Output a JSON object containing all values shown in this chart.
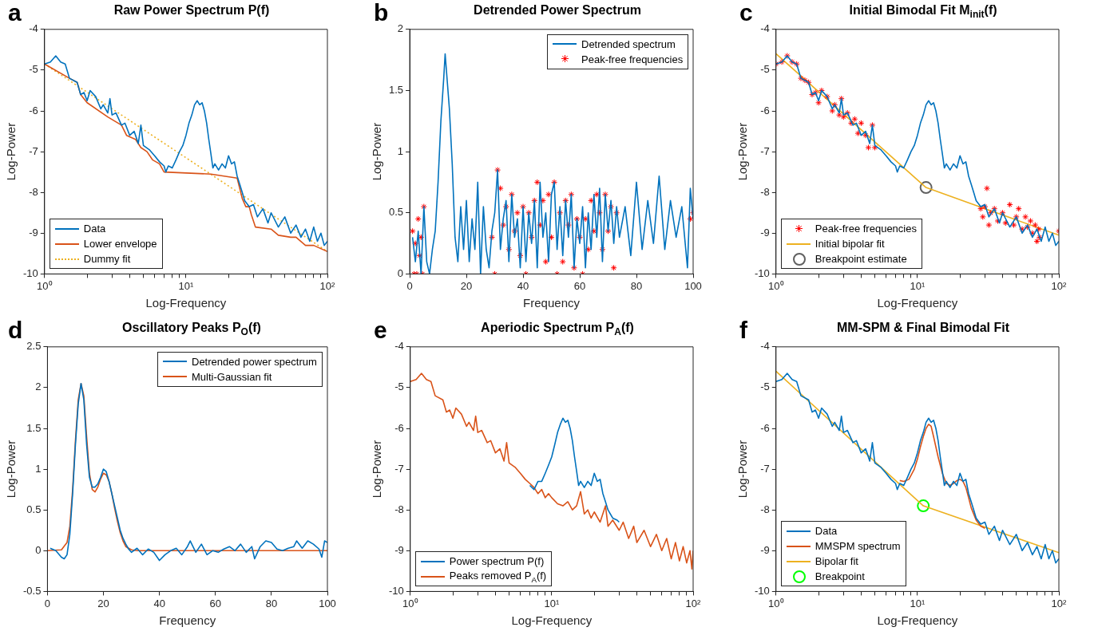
{
  "chart_data": [
    {
      "type": "line",
      "title": "Raw Power Spectrum P(f)",
      "annotations": [
        "a"
      ],
      "xlabel": "Log-Frequency",
      "ylabel": "Log-Power",
      "log": "x",
      "legend": "bottom left",
      "xlim": [
        1,
        100
      ],
      "xticks": [
        {
          "value": 1,
          "label": "10⁰"
        },
        {
          "value": 2,
          "label": null
        },
        {
          "value": 3,
          "label": null
        },
        {
          "value": 4,
          "label": null
        },
        {
          "value": 5,
          "label": null
        },
        {
          "value": 6,
          "label": null
        },
        {
          "value": 7,
          "label": null
        },
        {
          "value": 8,
          "label": null
        },
        {
          "value": 9,
          "label": null
        },
        {
          "value": 10,
          "label": "10¹"
        },
        {
          "value": 20,
          "label": null
        },
        {
          "value": 30,
          "label": null
        },
        {
          "value": 40,
          "label": null
        },
        {
          "value": 50,
          "label": null
        },
        {
          "value": 60,
          "label": null
        },
        {
          "value": 70,
          "label": null
        },
        {
          "value": 80,
          "label": null
        },
        {
          "value": 90,
          "label": null
        },
        {
          "value": 100,
          "label": "10²"
        }
      ],
      "ylim": [
        -10,
        -4
      ],
      "yticks": [
        -10,
        -9,
        -8,
        -7,
        -6,
        -5,
        -4
      ],
      "series": [
        {
          "name": "Data",
          "type": "line",
          "color": "#0072bd",
          "marker": "none",
          "line_style": "solid",
          "x": [
            1,
            1.1,
            1.2,
            1.3,
            1.4,
            1.5,
            1.7,
            1.8,
            1.9,
            2,
            2.1,
            2.3,
            2.5,
            2.6,
            2.8,
            2.9,
            3,
            3.2,
            3.5,
            3.7,
            4,
            4.3,
            4.6,
            4.8,
            5,
            5.5,
            6,
            6.5,
            7,
            7.2,
            7.5,
            8,
            8.5,
            9,
            9.5,
            10,
            10.5,
            11,
            11.5,
            12,
            12.5,
            13,
            13.5,
            14,
            14.5,
            15,
            15.5,
            16,
            17,
            18,
            19,
            20,
            21,
            22,
            23,
            24,
            25,
            26,
            28,
            30,
            32,
            35,
            38,
            40,
            45,
            50,
            55,
            60,
            65,
            70,
            75,
            80,
            85,
            90,
            95,
            100
          ],
          "values": [
            -4.85,
            -4.8,
            -4.65,
            -4.8,
            -4.85,
            -5.2,
            -5.3,
            -5.6,
            -5.55,
            -5.75,
            -5.5,
            -5.65,
            -5.95,
            -5.85,
            -6.05,
            -5.7,
            -6.1,
            -6.05,
            -6.35,
            -6.3,
            -6.6,
            -6.5,
            -6.8,
            -6.35,
            -6.85,
            -6.95,
            -7.1,
            -7.25,
            -7.35,
            -7.5,
            -7.35,
            -7.4,
            -7.2,
            -7,
            -6.85,
            -6.6,
            -6.3,
            -6.1,
            -5.85,
            -5.75,
            -5.85,
            -5.8,
            -6,
            -6.3,
            -6.7,
            -7.05,
            -7.4,
            -7.3,
            -7.45,
            -7.3,
            -7.4,
            -7.1,
            -7.3,
            -7.25,
            -7.6,
            -7.8,
            -8,
            -8.2,
            -8.35,
            -8.3,
            -8.6,
            -8.4,
            -8.75,
            -8.5,
            -8.85,
            -8.6,
            -9,
            -8.8,
            -9.1,
            -8.9,
            -9.2,
            -8.85,
            -9.2,
            -9,
            -9.3,
            -9.2
          ]
        },
        {
          "name": "Lower envelope",
          "type": "line",
          "color": "#d95319",
          "marker": "none",
          "line_style": "solid",
          "x": [
            1,
            1.5,
            1.7,
            1.8,
            2,
            2.8,
            3.5,
            3.8,
            4.4,
            4.8,
            5.3,
            5.8,
            6.5,
            7,
            15,
            23,
            25,
            26.5,
            28,
            29,
            31,
            40,
            45,
            55,
            60,
            70,
            80,
            100
          ],
          "values": [
            -4.85,
            -5.2,
            -5.3,
            -5.6,
            -5.8,
            -6.15,
            -6.35,
            -6.6,
            -6.7,
            -6.9,
            -7,
            -7.2,
            -7.3,
            -7.5,
            -7.55,
            -7.65,
            -8.15,
            -8.35,
            -8.35,
            -8.55,
            -8.85,
            -8.9,
            -9.05,
            -9.1,
            -9.1,
            -9.3,
            -9.3,
            -9.45
          ]
        },
        {
          "name": "Dummy fit",
          "type": "line",
          "color": "#edb120",
          "marker": "none",
          "line_style": "dotted",
          "x": [
            1,
            100
          ],
          "values": [
            -4.85,
            -9.45
          ]
        }
      ]
    },
    {
      "type": "line",
      "title": "Detrended Power Spectrum",
      "annotations": [
        "b"
      ],
      "xlabel": "Frequency",
      "ylabel": "Log-Power",
      "legend": "top right",
      "xlim": [
        0,
        100
      ],
      "xticks": [
        0,
        20,
        40,
        60,
        80,
        100
      ],
      "ylim": [
        0,
        2
      ],
      "yticks": [
        0,
        0.5,
        1,
        1.5,
        2
      ],
      "series": [
        {
          "name": "Detrended spectrum",
          "type": "line",
          "color": "#0072bd",
          "marker": "none",
          "line_style": "solid",
          "x": [
            1,
            2,
            3,
            4,
            5,
            6,
            7,
            8,
            9,
            10,
            11,
            12,
            12.5,
            13,
            14,
            15,
            16,
            17,
            18,
            19,
            20,
            21,
            22,
            23,
            24,
            25,
            26,
            27,
            28,
            29,
            30,
            31,
            32,
            33,
            34,
            35,
            36,
            37,
            38,
            39,
            40,
            41,
            42,
            43,
            44,
            45,
            46,
            47,
            48,
            49,
            50,
            51,
            52,
            53,
            54,
            55,
            56,
            57,
            58,
            59,
            60,
            61,
            62,
            63,
            64,
            65,
            66,
            67,
            68,
            69,
            70,
            71,
            72,
            73,
            74,
            76,
            78,
            80,
            82,
            84,
            86,
            88,
            90,
            92,
            94,
            96,
            98,
            99,
            100
          ],
          "values": [
            0.3,
            0.1,
            0.35,
            0,
            0.55,
            0.1,
            0,
            0.2,
            0.35,
            0.75,
            1.25,
            1.6,
            1.8,
            1.65,
            1.35,
            0.9,
            0.3,
            0.1,
            0.55,
            0.2,
            0.6,
            0.1,
            0.45,
            0.2,
            0.75,
            0,
            0.55,
            0.2,
            0.05,
            0.35,
            0.5,
            0.85,
            0.2,
            0.45,
            0.6,
            0.1,
            0.65,
            0.3,
            0.45,
            0.05,
            0.55,
            0.1,
            0.5,
            0.25,
            0.6,
            0.05,
            0.75,
            0.3,
            0.5,
            0.1,
            0.65,
            0.75,
            0.2,
            0.55,
            0.15,
            0.6,
            0.3,
            0.65,
            0.05,
            0.45,
            0.25,
            0.55,
            0.05,
            0.5,
            0.2,
            0.65,
            0.3,
            0.7,
            0.1,
            0.65,
            0.35,
            0.6,
            0.25,
            0.55,
            0.3,
            0.55,
            0.15,
            0.75,
            0.2,
            0.6,
            0.25,
            0.8,
            0.2,
            0.6,
            0.3,
            0.55,
            0.05,
            0.7,
            0.45
          ]
        },
        {
          "name": "Peak-free frequencies",
          "type": "scatter",
          "color": "#ff0000",
          "marker": "cross",
          "x": [
            1,
            1.5,
            2,
            2.5,
            3,
            3.5,
            4,
            4.5,
            5,
            29,
            30,
            31,
            32,
            33,
            34,
            35,
            36,
            37,
            38,
            39,
            40,
            41,
            42,
            43,
            44,
            45,
            46,
            47,
            48,
            49,
            50,
            51,
            52,
            53,
            54,
            55,
            56,
            57,
            58,
            59,
            60,
            61,
            62,
            63,
            64,
            65,
            66,
            67,
            68,
            69,
            70,
            71,
            72,
            73,
            99,
            100
          ],
          "values": [
            0.35,
            0,
            0.25,
            0,
            0.45,
            0.15,
            0.3,
            0,
            0.55,
            0.3,
            0,
            0.85,
            0.7,
            0.4,
            0.55,
            0.2,
            0.65,
            0.35,
            0.5,
            0.15,
            0.55,
            0,
            0.5,
            0.3,
            0.6,
            0.75,
            0.4,
            0.6,
            0.1,
            0.65,
            0.3,
            0.75,
            0,
            0.5,
            0.1,
            0.6,
            0.4,
            0.65,
            0.05,
            0.45,
            0.3,
            0,
            0.45,
            0.2,
            0.6,
            0.35,
            0.65,
            0.5,
            0.2,
            0.65,
            0.35,
            0.55,
            0.05,
            0.5,
            0.45,
            0.5
          ]
        }
      ]
    },
    {
      "type": "line",
      "title": "Initial Bimodal Fit M$_{init}$(f)",
      "annotations": [
        "c"
      ],
      "xlabel": "Log-Frequency",
      "ylabel": "Log-Power",
      "log": "x",
      "legend": "bottom left",
      "xlim": [
        1,
        100
      ],
      "xticks": [
        {
          "value": 1,
          "label": "10⁰"
        },
        {
          "value": 2,
          "label": null
        },
        {
          "value": 3,
          "label": null
        },
        {
          "value": 4,
          "label": null
        },
        {
          "value": 5,
          "label": null
        },
        {
          "value": 6,
          "label": null
        },
        {
          "value": 7,
          "label": null
        },
        {
          "value": 8,
          "label": null
        },
        {
          "value": 9,
          "label": null
        },
        {
          "value": 10,
          "label": "10¹"
        },
        {
          "value": 20,
          "label": null
        },
        {
          "value": 30,
          "label": null
        },
        {
          "value": 40,
          "label": null
        },
        {
          "value": 50,
          "label": null
        },
        {
          "value": 60,
          "label": null
        },
        {
          "value": 70,
          "label": null
        },
        {
          "value": 80,
          "label": null
        },
        {
          "value": 90,
          "label": null
        },
        {
          "value": 100,
          "label": "10²"
        }
      ],
      "ylim": [
        -10,
        -4
      ],
      "yticks": [
        -10,
        -9,
        -8,
        -7,
        -6,
        -5,
        -4
      ],
      "series": [
        {
          "type": "line",
          "color": "#0072bd",
          "marker": "none",
          "line_style": "solid",
          "x": [
            1,
            1.1,
            1.2,
            1.3,
            1.4,
            1.5,
            1.7,
            1.8,
            1.9,
            2,
            2.1,
            2.3,
            2.5,
            2.6,
            2.8,
            2.9,
            3,
            3.2,
            3.5,
            3.7,
            4,
            4.3,
            4.6,
            4.8,
            5,
            5.5,
            6,
            6.5,
            7,
            7.2,
            7.5,
            8,
            8.5,
            9,
            9.5,
            10,
            10.5,
            11,
            11.5,
            12,
            12.5,
            13,
            13.5,
            14,
            14.5,
            15,
            15.5,
            16,
            17,
            18,
            19,
            20,
            21,
            22,
            23,
            24,
            25,
            26,
            28,
            30,
            32,
            35,
            38,
            40,
            45,
            50,
            55,
            60,
            65,
            70,
            75,
            80,
            85,
            90,
            95,
            100
          ],
          "values": [
            -4.85,
            -4.8,
            -4.65,
            -4.8,
            -4.85,
            -5.2,
            -5.3,
            -5.6,
            -5.55,
            -5.75,
            -5.5,
            -5.65,
            -5.95,
            -5.85,
            -6.05,
            -5.7,
            -6.1,
            -6.05,
            -6.35,
            -6.3,
            -6.6,
            -6.5,
            -6.8,
            -6.35,
            -6.85,
            -6.95,
            -7.1,
            -7.25,
            -7.35,
            -7.5,
            -7.35,
            -7.4,
            -7.2,
            -7,
            -6.85,
            -6.6,
            -6.3,
            -6.1,
            -5.85,
            -5.75,
            -5.85,
            -5.8,
            -6,
            -6.3,
            -6.7,
            -7.05,
            -7.4,
            -7.3,
            -7.45,
            -7.3,
            -7.4,
            -7.1,
            -7.3,
            -7.25,
            -7.6,
            -7.8,
            -8,
            -8.2,
            -8.35,
            -8.3,
            -8.6,
            -8.4,
            -8.75,
            -8.5,
            -8.85,
            -8.6,
            -9,
            -8.8,
            -9.1,
            -8.9,
            -9.2,
            -8.85,
            -9.2,
            -9,
            -9.3,
            -9.2
          ]
        },
        {
          "name": "Peak-free frequencies",
          "type": "scatter",
          "color": "#ff0000",
          "marker": "cross",
          "x": [
            1,
            1.1,
            1.2,
            1.3,
            1.4,
            1.5,
            1.6,
            1.7,
            1.8,
            1.9,
            2,
            2.1,
            2.3,
            2.5,
            2.6,
            2.8,
            2.9,
            3,
            3.2,
            3.4,
            3.6,
            3.8,
            4,
            4.3,
            4.5,
            4.8,
            5,
            28,
            29,
            30,
            31,
            32,
            33,
            35,
            37,
            40,
            42,
            45,
            48,
            50,
            52,
            55,
            58,
            60,
            63,
            65,
            68,
            70,
            72,
            73,
            100
          ],
          "values": [
            -4.85,
            -4.8,
            -4.65,
            -4.8,
            -4.85,
            -5.2,
            -5.25,
            -5.3,
            -5.6,
            -5.55,
            -5.8,
            -5.5,
            -5.65,
            -6,
            -5.85,
            -6.1,
            -5.7,
            -6.15,
            -6.05,
            -6.3,
            -6.2,
            -6.55,
            -6.3,
            -6.6,
            -6.9,
            -6.35,
            -6.9,
            -8.4,
            -8.6,
            -8.35,
            -7.9,
            -8.8,
            -8.5,
            -8.4,
            -8.7,
            -8.5,
            -8.75,
            -8.3,
            -8.8,
            -8.6,
            -8.4,
            -8.9,
            -8.6,
            -8.85,
            -8.7,
            -9,
            -8.8,
            -9.2,
            -8.9,
            -9.1,
            -8.95
          ]
        },
        {
          "name": "Initial bipolar fit",
          "type": "line",
          "color": "#edb120",
          "marker": "none",
          "line_style": "solid",
          "x": [
            1,
            11.5,
            100
          ],
          "values": [
            -4.6,
            -7.88,
            -9.05
          ]
        },
        {
          "name": "Breakpoint estimate",
          "type": "scatter",
          "color": "#606060",
          "marker": "circle",
          "x": [
            11.5
          ],
          "values": [
            -7.88
          ]
        }
      ]
    },
    {
      "type": "line",
      "title": "Oscillatory Peaks P$_{O}$(f)",
      "annotations": [
        "d"
      ],
      "xlabel": "Frequency",
      "ylabel": "Log-Power",
      "legend": "top right",
      "xlim": [
        0,
        100
      ],
      "xticks": [
        0,
        20,
        40,
        60,
        80,
        100
      ],
      "ylim": [
        -0.5,
        2.5
      ],
      "yticks": [
        -0.5,
        0,
        0.5,
        1,
        1.5,
        2,
        2.5
      ],
      "series": [
        {
          "name": "Detrended power spectrum",
          "type": "line",
          "color": "#0072bd",
          "marker": "none",
          "line_style": "solid",
          "x": [
            1,
            3,
            5,
            6,
            7,
            8,
            9,
            10,
            11,
            12,
            13,
            14,
            15,
            16,
            17,
            18,
            19,
            20,
            21,
            22,
            23,
            24,
            25,
            26,
            27,
            28,
            29,
            30,
            32,
            34,
            36,
            38,
            40,
            42,
            44,
            46,
            48,
            50,
            51,
            53,
            55,
            57,
            59,
            61,
            63,
            65,
            67,
            69,
            71,
            73,
            74,
            76,
            78,
            80,
            82,
            84,
            86,
            88,
            89,
            91,
            93,
            95,
            97,
            98,
            99,
            100
          ],
          "values": [
            0.03,
            0,
            -0.08,
            -0.1,
            -0.05,
            0.2,
            0.7,
            1.3,
            1.8,
            2.05,
            1.85,
            1.3,
            0.9,
            0.78,
            0.78,
            0.82,
            0.9,
            1,
            0.97,
            0.85,
            0.7,
            0.55,
            0.4,
            0.25,
            0.15,
            0.08,
            0.02,
            -0.02,
            0.03,
            -0.05,
            0.02,
            -0.02,
            -0.12,
            -0.05,
            0,
            0.03,
            -0.05,
            0.05,
            0.12,
            -0.02,
            0.08,
            -0.05,
            0,
            -0.02,
            0.02,
            0.05,
            0,
            0.08,
            -0.02,
            0.05,
            -0.1,
            0.05,
            0.12,
            0.1,
            0.02,
            0,
            0.03,
            0.05,
            0.12,
            0.03,
            0.12,
            0.08,
            0.02,
            -0.08,
            0.12,
            0.1
          ]
        },
        {
          "name": "Multi-Gaussian fit",
          "type": "line",
          "color": "#d95319",
          "marker": "none",
          "line_style": "solid",
          "x": [
            0,
            5,
            7,
            8,
            9,
            10,
            11,
            12,
            13,
            14,
            15,
            16,
            17,
            18,
            19,
            20,
            21,
            22,
            23,
            24,
            25,
            26,
            27,
            28,
            30,
            32,
            100
          ],
          "values": [
            0,
            0.01,
            0.1,
            0.3,
            0.75,
            1.35,
            1.85,
            2.05,
            1.9,
            1.4,
            0.95,
            0.75,
            0.72,
            0.78,
            0.88,
            0.95,
            0.93,
            0.85,
            0.7,
            0.52,
            0.36,
            0.22,
            0.12,
            0.05,
            0.01,
            0,
            0
          ]
        }
      ]
    },
    {
      "type": "line",
      "title": "Aperiodic Spectrum P$_{A}$(f)",
      "annotations": [
        "e"
      ],
      "xlabel": "Log-Frequency",
      "ylabel": "Log-Power",
      "log": "x",
      "legend": "bottom left",
      "xlim": [
        1,
        100
      ],
      "xticks": [
        {
          "value": 1,
          "label": "10⁰"
        },
        {
          "value": 2,
          "label": null
        },
        {
          "value": 3,
          "label": null
        },
        {
          "value": 4,
          "label": null
        },
        {
          "value": 5,
          "label": null
        },
        {
          "value": 6,
          "label": null
        },
        {
          "value": 7,
          "label": null
        },
        {
          "value": 8,
          "label": null
        },
        {
          "value": 9,
          "label": null
        },
        {
          "value": 10,
          "label": "10¹"
        },
        {
          "value": 20,
          "label": null
        },
        {
          "value": 30,
          "label": null
        },
        {
          "value": 40,
          "label": null
        },
        {
          "value": 50,
          "label": null
        },
        {
          "value": 60,
          "label": null
        },
        {
          "value": 70,
          "label": null
        },
        {
          "value": 80,
          "label": null
        },
        {
          "value": 90,
          "label": null
        },
        {
          "value": 100,
          "label": "10²"
        }
      ],
      "ylim": [
        -10,
        -4
      ],
      "yticks": [
        -10,
        -9,
        -8,
        -7,
        -6,
        -5,
        -4
      ],
      "series": [
        {
          "name": "Power spectrum P(f)",
          "type": "line",
          "color": "#0072bd",
          "marker": "none",
          "line_style": "solid",
          "x": [
            7,
            7.5,
            8,
            8.5,
            9,
            9.5,
            10,
            10.5,
            11,
            11.5,
            12,
            12.5,
            13,
            13.5,
            14,
            14.5,
            15,
            15.5,
            16,
            17,
            18,
            19,
            20,
            21,
            22,
            23,
            24,
            25,
            27,
            29,
            30
          ],
          "values": [
            -7.4,
            -7.5,
            -7.3,
            -7.3,
            -7.1,
            -6.9,
            -6.7,
            -6.4,
            -6.1,
            -5.9,
            -5.75,
            -5.85,
            -5.8,
            -6,
            -6.3,
            -6.7,
            -7.05,
            -7.4,
            -7.3,
            -7.45,
            -7.3,
            -7.4,
            -7.1,
            -7.3,
            -7.25,
            -7.6,
            -7.8,
            -8,
            -8.2,
            -8.25,
            -8.3
          ]
        },
        {
          "name": "Peaks removed P$_{A}$(f)",
          "type": "line",
          "color": "#d95319",
          "marker": "none",
          "line_style": "solid",
          "x": [
            1,
            1.1,
            1.2,
            1.3,
            1.4,
            1.5,
            1.7,
            1.8,
            1.9,
            2,
            2.1,
            2.3,
            2.5,
            2.6,
            2.8,
            2.9,
            3,
            3.2,
            3.5,
            3.7,
            4,
            4.3,
            4.6,
            4.8,
            5,
            5.5,
            6,
            6.5,
            7,
            7.5,
            8,
            8.5,
            9,
            9.5,
            10,
            11,
            12,
            13,
            14,
            15,
            16,
            17,
            18,
            19,
            20,
            22,
            24,
            25,
            27,
            30,
            32,
            35,
            38,
            40,
            45,
            50,
            55,
            60,
            65,
            70,
            75,
            80,
            85,
            90,
            95,
            98,
            100
          ],
          "values": [
            -4.85,
            -4.8,
            -4.65,
            -4.8,
            -4.85,
            -5.2,
            -5.3,
            -5.6,
            -5.55,
            -5.75,
            -5.5,
            -5.65,
            -5.95,
            -5.85,
            -6.05,
            -5.7,
            -6.1,
            -6.05,
            -6.35,
            -6.3,
            -6.6,
            -6.5,
            -6.8,
            -6.35,
            -6.85,
            -6.95,
            -7.1,
            -7.25,
            -7.35,
            -7.45,
            -7.6,
            -7.5,
            -7.7,
            -7.6,
            -7.7,
            -7.85,
            -7.9,
            -7.8,
            -8,
            -7.9,
            -7.55,
            -8.1,
            -8,
            -8.2,
            -8.05,
            -8.3,
            -7.9,
            -8.4,
            -8.25,
            -8.5,
            -8.3,
            -8.7,
            -8.4,
            -8.8,
            -8.5,
            -8.9,
            -8.6,
            -9,
            -8.7,
            -9.2,
            -8.8,
            -9.25,
            -8.9,
            -9.3,
            -9,
            -9.45,
            -9
          ]
        }
      ]
    },
    {
      "type": "line",
      "title": "MM-SPM & Final Bimodal Fit",
      "annotations": [
        "f"
      ],
      "xlabel": "Log-Frequency",
      "ylabel": "Log-Power",
      "log": "x",
      "legend": "bottom left",
      "xlim": [
        1,
        100
      ],
      "xticks": [
        {
          "value": 1,
          "label": "10⁰"
        },
        {
          "value": 2,
          "label": null
        },
        {
          "value": 3,
          "label": null
        },
        {
          "value": 4,
          "label": null
        },
        {
          "value": 5,
          "label": null
        },
        {
          "value": 6,
          "label": null
        },
        {
          "value": 7,
          "label": null
        },
        {
          "value": 8,
          "label": null
        },
        {
          "value": 9,
          "label": null
        },
        {
          "value": 10,
          "label": "10¹"
        },
        {
          "value": 20,
          "label": null
        },
        {
          "value": 30,
          "label": null
        },
        {
          "value": 40,
          "label": null
        },
        {
          "value": 50,
          "label": null
        },
        {
          "value": 60,
          "label": null
        },
        {
          "value": 70,
          "label": null
        },
        {
          "value": 80,
          "label": null
        },
        {
          "value": 90,
          "label": null
        },
        {
          "value": 100,
          "label": "10²"
        }
      ],
      "ylim": [
        -10,
        -4
      ],
      "yticks": [
        -10,
        -9,
        -8,
        -7,
        -6,
        -5,
        -4
      ],
      "series": [
        {
          "name": "Data",
          "type": "line",
          "color": "#0072bd",
          "marker": "none",
          "line_style": "solid",
          "x": [
            1,
            1.1,
            1.2,
            1.3,
            1.4,
            1.5,
            1.7,
            1.8,
            1.9,
            2,
            2.1,
            2.3,
            2.5,
            2.6,
            2.8,
            2.9,
            3,
            3.2,
            3.5,
            3.7,
            4,
            4.3,
            4.6,
            4.8,
            5,
            5.5,
            6,
            6.5,
            7,
            7.2,
            7.5,
            8,
            8.5,
            9,
            9.5,
            10,
            10.5,
            11,
            11.5,
            12,
            12.5,
            13,
            13.5,
            14,
            14.5,
            15,
            15.5,
            16,
            17,
            18,
            19,
            20,
            21,
            22,
            23,
            24,
            25,
            26,
            28,
            30,
            32,
            35,
            38,
            40,
            45,
            50,
            55,
            60,
            65,
            70,
            75,
            80,
            85,
            90,
            95,
            100
          ],
          "values": [
            -4.85,
            -4.8,
            -4.65,
            -4.8,
            -4.85,
            -5.2,
            -5.3,
            -5.6,
            -5.55,
            -5.75,
            -5.5,
            -5.65,
            -5.95,
            -5.85,
            -6.05,
            -5.7,
            -6.1,
            -6.05,
            -6.35,
            -6.3,
            -6.6,
            -6.5,
            -6.8,
            -6.35,
            -6.85,
            -6.95,
            -7.1,
            -7.25,
            -7.35,
            -7.5,
            -7.35,
            -7.4,
            -7.2,
            -7,
            -6.85,
            -6.6,
            -6.3,
            -6.1,
            -5.85,
            -5.75,
            -5.85,
            -5.8,
            -6,
            -6.3,
            -6.7,
            -7.05,
            -7.4,
            -7.3,
            -7.45,
            -7.3,
            -7.4,
            -7.1,
            -7.3,
            -7.25,
            -7.6,
            -7.8,
            -8,
            -8.2,
            -8.35,
            -8.3,
            -8.6,
            -8.4,
            -8.75,
            -8.5,
            -8.85,
            -8.6,
            -9,
            -8.8,
            -9.1,
            -8.9,
            -9.2,
            -8.85,
            -9.2,
            -9,
            -9.3,
            -9.2
          ]
        },
        {
          "name": "MMSPM spectrum",
          "type": "line",
          "color": "#d95319",
          "marker": "none",
          "line_style": "solid",
          "x": [
            7.5,
            8,
            8.7,
            9.5,
            10,
            10.5,
            11,
            11.5,
            12,
            12.5,
            13,
            14,
            15,
            16,
            17,
            18,
            19,
            20,
            21,
            22,
            23,
            24,
            26,
            28,
            30
          ],
          "values": [
            -7.28,
            -7.3,
            -7.25,
            -7,
            -6.75,
            -6.45,
            -6.2,
            -6,
            -5.9,
            -5.95,
            -6.2,
            -6.7,
            -7.1,
            -7.35,
            -7.4,
            -7.35,
            -7.28,
            -7.25,
            -7.3,
            -7.45,
            -7.7,
            -7.95,
            -8.25,
            -8.4,
            -8.45
          ]
        },
        {
          "name": "Bipolar fit",
          "type": "line",
          "color": "#edb120",
          "marker": "none",
          "line_style": "solid",
          "x": [
            1,
            11,
            100
          ],
          "values": [
            -4.6,
            -7.9,
            -9.05
          ]
        },
        {
          "name": "Breakpoint",
          "type": "scatter",
          "color": "#00ff00",
          "marker": "circle",
          "x": [
            11
          ],
          "values": [
            -7.9
          ]
        }
      ]
    }
  ]
}
